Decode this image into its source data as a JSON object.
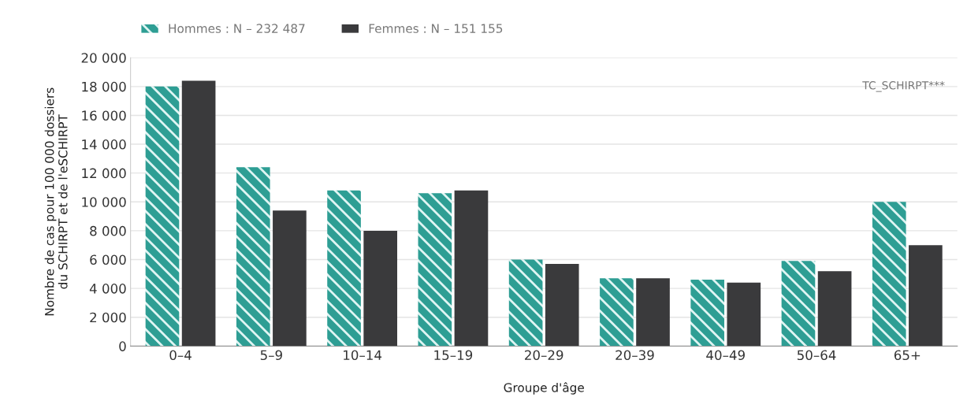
{
  "chart_data": {
    "type": "bar",
    "xlabel": "Groupe d'âge",
    "ylabel": "Nombre de cas pour 100 000 dossiers\ndu SCHIRPT et de l'eSCHIRPT",
    "categories": [
      "0–4",
      "5–9",
      "10–14",
      "15–19",
      "20–29",
      "20–39",
      "40–49",
      "50–64",
      "65+"
    ],
    "series": [
      {
        "name": "Hommes : N – 232 487",
        "color": "#2e9e94",
        "values": [
          18000,
          12400,
          10800,
          10600,
          6000,
          4700,
          4600,
          5900,
          10000
        ]
      },
      {
        "name": "Femmes : N – 151 155",
        "color": "#3a3a3c",
        "values": [
          18400,
          9400,
          8000,
          10800,
          5700,
          4700,
          4400,
          5200,
          7000
        ]
      }
    ],
    "ylim": [
      0,
      20000
    ],
    "yticks": [
      0,
      {
        "value": 2000,
        "label": "2 000"
      },
      {
        "value": 4000,
        "label": "4 000"
      },
      {
        "value": 6000,
        "label": "6 000"
      },
      {
        "value": 8000,
        "label": "8 000"
      },
      {
        "value": 10000,
        "label": "10 000"
      },
      {
        "value": 12000,
        "label": "12 000"
      },
      {
        "value": 14000,
        "label": "14 000"
      },
      {
        "value": 16000,
        "label": "16 000"
      },
      {
        "value": 18000,
        "label": "18 000"
      },
      {
        "value": 20000,
        "label": "20 000"
      }
    ],
    "grid": "y",
    "legend": "top left",
    "annotations": [
      "TC_SCHIRPT***"
    ]
  }
}
